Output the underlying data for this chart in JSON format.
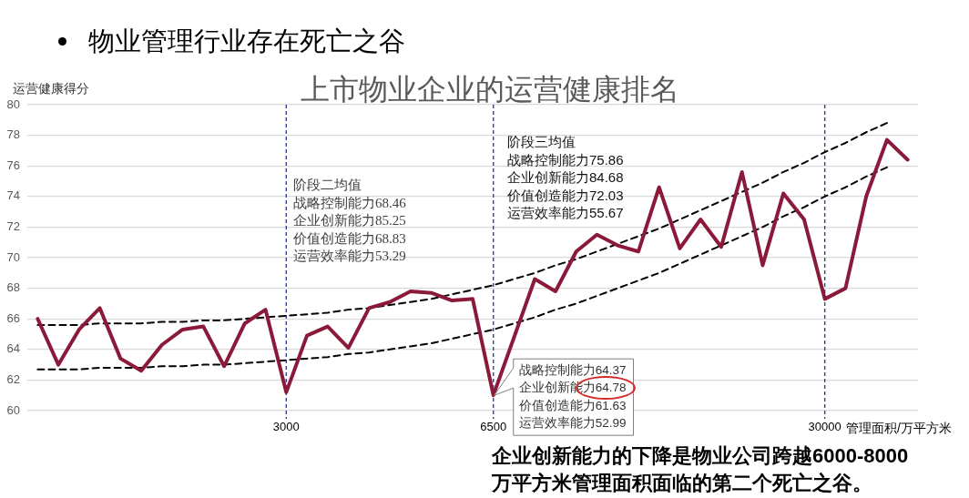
{
  "chart_data": {
    "type": "line",
    "title": "物业管理行业存在死亡之谷",
    "subtitle": "上市物业企业的运营健康排名",
    "xlabel": "管理面积/万平方米",
    "ylabel": "运营健康得分",
    "categories": [
      null,
      null,
      null,
      null,
      null,
      null,
      null,
      null,
      null,
      null,
      null,
      null,
      "3000",
      null,
      null,
      null,
      null,
      null,
      null,
      null,
      null,
      null,
      "6500",
      null,
      null,
      null,
      null,
      null,
      null,
      null,
      null,
      null,
      null,
      null,
      null,
      null,
      null,
      null,
      "30000",
      null,
      null,
      null,
      null
    ],
    "series": [
      {
        "type": "line",
        "color": "#8b1a3a",
        "values": [
          66.0,
          63.0,
          65.3,
          66.7,
          63.4,
          62.6,
          64.3,
          65.3,
          65.5,
          62.9,
          65.7,
          66.6,
          61.2,
          64.9,
          65.5,
          64.1,
          66.7,
          67.1,
          67.8,
          67.7,
          67.2,
          67.3,
          61.0,
          64.8,
          68.6,
          67.8,
          70.4,
          71.5,
          70.8,
          70.4,
          74.6,
          70.6,
          72.5,
          70.7,
          75.6,
          69.5,
          74.2,
          72.5,
          67.3,
          68.0,
          74.0,
          77.7,
          76.4
        ]
      },
      {
        "type": "line",
        "color": "#000000",
        "line_style": "dashed",
        "values": [
          65.6,
          65.6,
          65.6,
          65.7,
          65.7,
          65.7,
          65.8,
          65.8,
          65.9,
          65.9,
          66.0,
          66.1,
          66.2,
          66.3,
          66.4,
          66.6,
          66.7,
          66.9,
          67.1,
          67.3,
          67.6,
          67.9,
          68.2,
          68.6,
          69.0,
          69.5,
          69.9,
          70.4,
          70.9,
          71.4,
          71.9,
          72.5,
          73.1,
          73.7,
          74.3,
          74.9,
          75.6,
          76.2,
          76.9,
          77.5,
          78.2,
          78.8,
          null
        ]
      },
      {
        "type": "line",
        "color": "#000000",
        "line_style": "dashed",
        "values": [
          62.7,
          62.7,
          62.7,
          62.8,
          62.8,
          62.8,
          62.9,
          62.9,
          63.0,
          63.0,
          63.1,
          63.2,
          63.3,
          63.4,
          63.5,
          63.7,
          63.8,
          64.0,
          64.2,
          64.4,
          64.7,
          65.0,
          65.3,
          65.7,
          66.1,
          66.6,
          67.0,
          67.5,
          68.0,
          68.5,
          69.0,
          69.6,
          70.2,
          70.8,
          71.4,
          72.0,
          72.7,
          73.3,
          74.0,
          74.6,
          75.3,
          75.9,
          null
        ]
      }
    ],
    "ylim": [
      60,
      80
    ],
    "yticks": [
      60,
      62,
      64,
      66,
      68,
      70,
      72,
      74,
      76,
      78,
      80
    ],
    "grid": "y",
    "legend": false,
    "marker": "none",
    "line_style": "solid",
    "ref_lines": [
      {
        "axis": "x",
        "value": "3000",
        "color": "#34448c",
        "line_style": "dashed"
      },
      {
        "axis": "x",
        "value": "6500",
        "color": "#34448c",
        "line_style": "dashed"
      },
      {
        "axis": "x",
        "value": "30000",
        "color": "#34448c",
        "line_style": "dashed"
      }
    ],
    "annotations": [
      "阶段二均值",
      "战略控制能力68.46",
      "企业创新能力85.25",
      "价值创造能力68.83",
      "运营效率能力53.29",
      "阶段三均值",
      "战略控制能力75.86",
      "企业创新能力84.68",
      "价值创造能力72.03",
      "运营效率能力55.67",
      {
        "text": "战略控制能力64.37\n企业创新能力64.78\n价值创造能力61.63\n运营效率能力52.99",
        "x": "6500",
        "y": 61.0
      },
      "企业创新能力的下降是物业公司跨越6000-8000万平方米管理面积面临的第二个死亡之谷。"
    ]
  }
}
